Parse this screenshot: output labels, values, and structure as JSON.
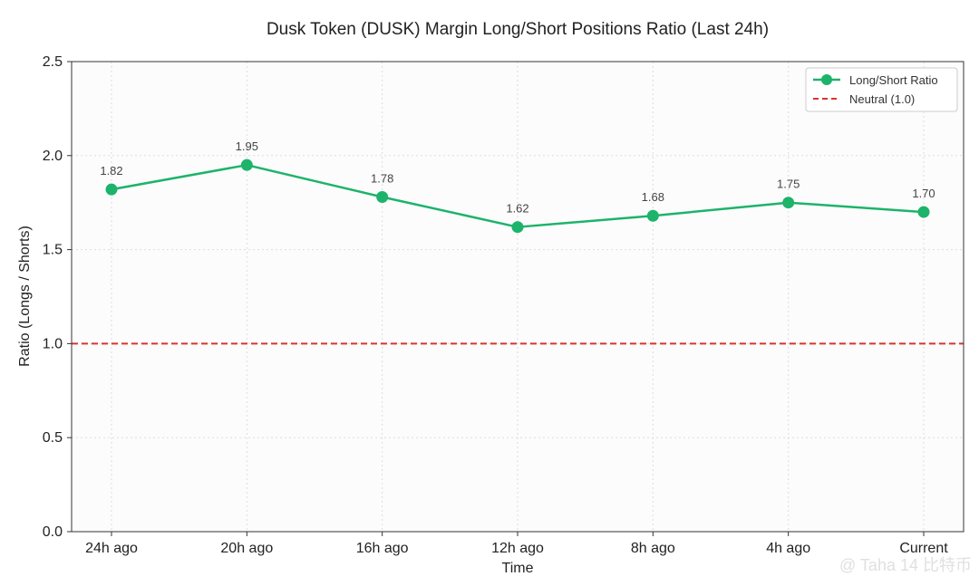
{
  "chart_data": {
    "type": "line",
    "title": "Dusk Token (DUSK) Margin Long/Short Positions Ratio (Last 24h)",
    "xlabel": "Time",
    "ylabel": "Ratio (Longs / Shorts)",
    "categories": [
      "24h ago",
      "20h ago",
      "16h ago",
      "12h ago",
      "8h ago",
      "4h ago",
      "Current"
    ],
    "series": [
      {
        "name": "Long/Short Ratio",
        "values": [
          1.82,
          1.95,
          1.78,
          1.62,
          1.68,
          1.75,
          1.7
        ],
        "labels": [
          "1.82",
          "1.95",
          "1.78",
          "1.62",
          "1.68",
          "1.75",
          "1.70"
        ],
        "color": "#1db36b"
      }
    ],
    "reference_line": {
      "name": "Neutral (1.0)",
      "value": 1.0,
      "color": "#d9342b"
    },
    "ylim": [
      0,
      2.5
    ],
    "yticks": [
      "0.0",
      "0.5",
      "1.0",
      "1.5",
      "2.0",
      "2.5"
    ],
    "ytick_values": [
      0,
      0.5,
      1.0,
      1.5,
      2.0,
      2.5
    ],
    "grid": true,
    "legend_position": "top-right",
    "plot_background": "#fcfcfc"
  },
  "watermark": {
    "text": "@ Taha 14 比特币"
  }
}
